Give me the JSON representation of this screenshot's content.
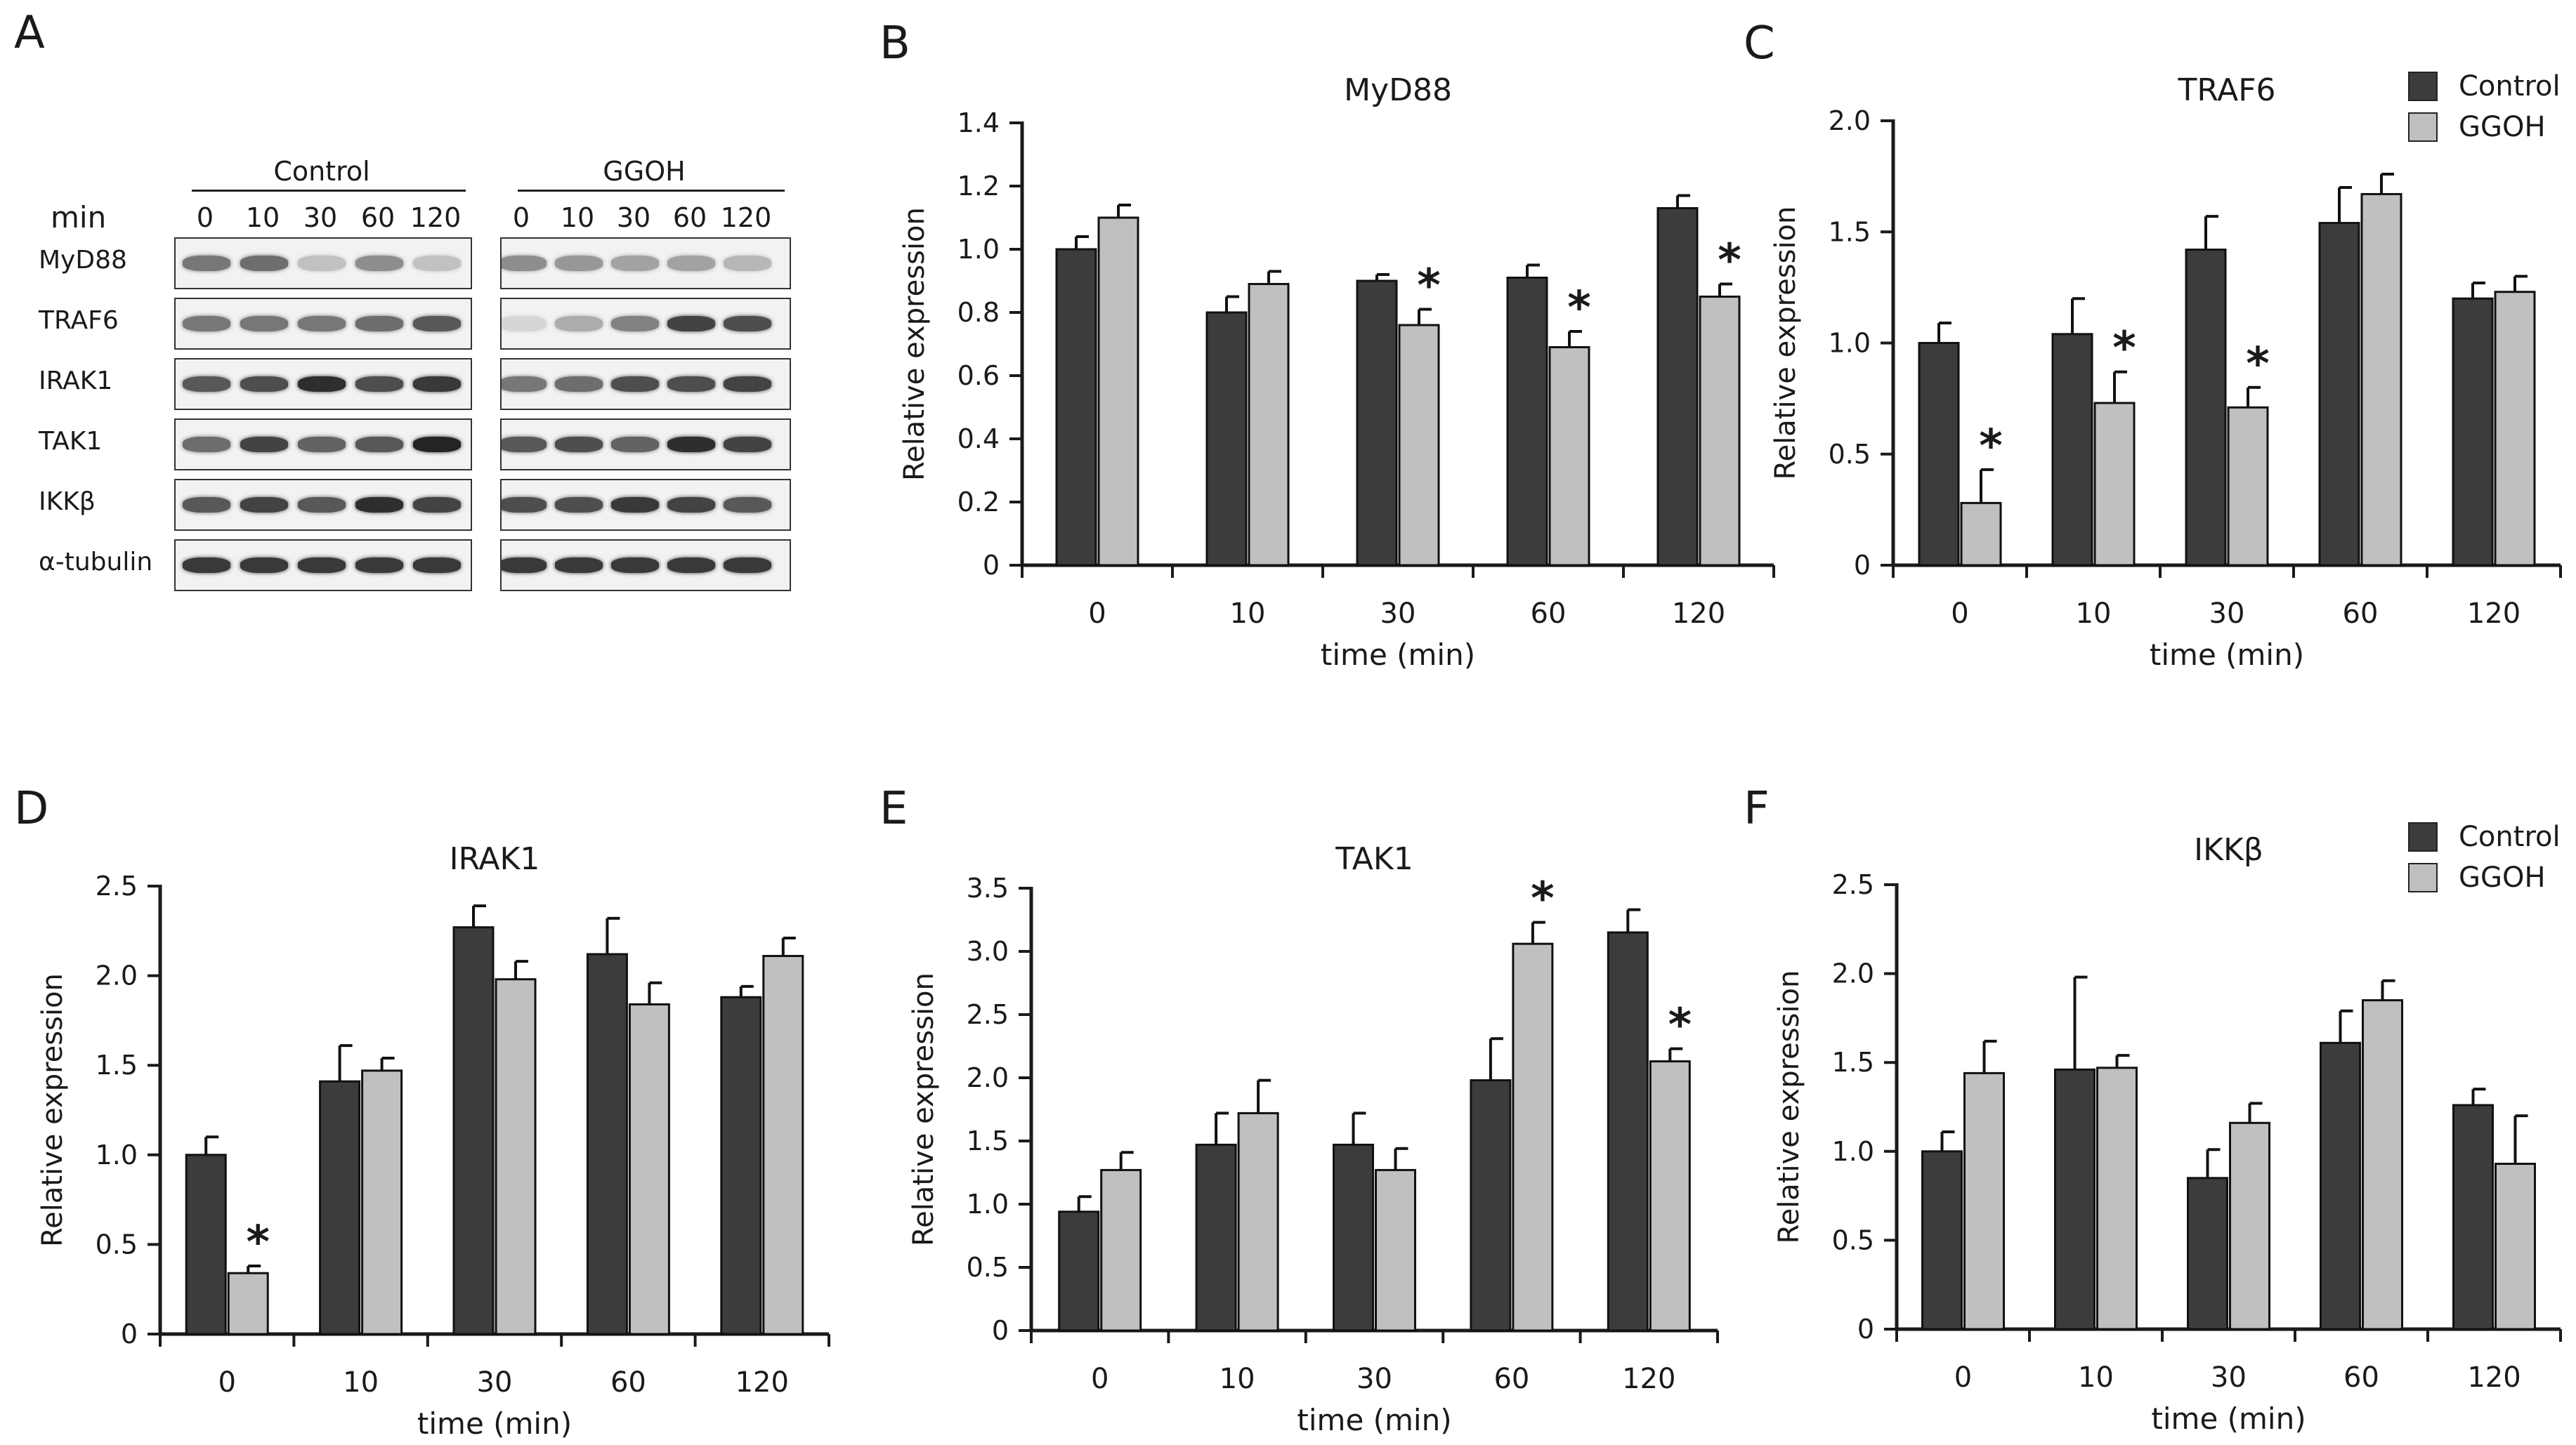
{
  "figure": {
    "panel_labels": [
      "A",
      "B",
      "C",
      "D",
      "E",
      "F"
    ],
    "colors": {
      "control": "#3c3c3c",
      "ggoh": "#c0c0c0",
      "axis": "#1a1a1a"
    },
    "legend": {
      "items": [
        "Control",
        "GGOH"
      ]
    }
  },
  "blot": {
    "group_control": "Control",
    "group_ggoh": "GGOH",
    "min_label": "min",
    "time_labels": [
      "0",
      "10",
      "30",
      "60",
      "120"
    ],
    "rows": [
      {
        "label": "MyD88",
        "control": [
          0.55,
          0.6,
          0.2,
          0.45,
          0.2
        ],
        "ggoh": [
          0.45,
          0.4,
          0.35,
          0.35,
          0.25
        ]
      },
      {
        "label": "TRAF6",
        "control": [
          0.55,
          0.55,
          0.55,
          0.6,
          0.7
        ],
        "ggoh": [
          0.1,
          0.3,
          0.5,
          0.8,
          0.75
        ]
      },
      {
        "label": "IRAK1",
        "control": [
          0.7,
          0.75,
          0.9,
          0.75,
          0.85
        ],
        "ggoh": [
          0.55,
          0.6,
          0.75,
          0.75,
          0.8
        ]
      },
      {
        "label": "TAK1",
        "control": [
          0.6,
          0.8,
          0.65,
          0.7,
          0.95
        ],
        "ggoh": [
          0.7,
          0.75,
          0.65,
          0.9,
          0.8
        ]
      },
      {
        "label": "IKKβ",
        "control": [
          0.7,
          0.8,
          0.7,
          0.9,
          0.8
        ],
        "ggoh": [
          0.75,
          0.75,
          0.85,
          0.8,
          0.7
        ]
      },
      {
        "label": "α-tubulin",
        "control": [
          0.85,
          0.85,
          0.85,
          0.85,
          0.85
        ],
        "ggoh": [
          0.85,
          0.85,
          0.85,
          0.85,
          0.85
        ]
      }
    ]
  },
  "chart_data": [
    {
      "panel": "B",
      "type": "bar",
      "title": "MyD88",
      "xlabel": "time (min)",
      "ylabel": "Relative expression",
      "categories": [
        "0",
        "10",
        "30",
        "60",
        "120"
      ],
      "ylim": [
        0,
        1.4
      ],
      "yticks": [
        "0",
        "0.2",
        "0.4",
        "0.6",
        "0.8",
        "1.0",
        "1.2",
        "1.4"
      ],
      "series": [
        {
          "name": "Control",
          "values": [
            1.0,
            0.8,
            0.9,
            0.91,
            1.13
          ],
          "errors": [
            0.04,
            0.05,
            0.02,
            0.04,
            0.04
          ]
        },
        {
          "name": "GGOH",
          "values": [
            1.1,
            0.89,
            0.76,
            0.69,
            0.85
          ],
          "errors": [
            0.04,
            0.04,
            0.05,
            0.05,
            0.04
          ]
        }
      ],
      "annotations": [
        {
          "category": "30",
          "series": "GGOH",
          "text": "*"
        },
        {
          "category": "60",
          "series": "GGOH",
          "text": "*"
        },
        {
          "category": "120",
          "series": "GGOH",
          "text": "*"
        }
      ]
    },
    {
      "panel": "C",
      "type": "bar",
      "title": "TRAF6",
      "xlabel": "time (min)",
      "ylabel": "Relative expression",
      "categories": [
        "0",
        "10",
        "30",
        "60",
        "120"
      ],
      "ylim": [
        0,
        2.0
      ],
      "yticks": [
        "0",
        "0.5",
        "1.0",
        "1.5",
        "2.0"
      ],
      "legend_position": "top-right",
      "series": [
        {
          "name": "Control",
          "values": [
            1.0,
            1.04,
            1.42,
            1.54,
            1.2
          ],
          "errors": [
            0.09,
            0.16,
            0.15,
            0.16,
            0.07
          ]
        },
        {
          "name": "GGOH",
          "values": [
            0.28,
            0.73,
            0.71,
            1.67,
            1.23
          ],
          "errors": [
            0.15,
            0.14,
            0.09,
            0.09,
            0.07
          ]
        }
      ],
      "annotations": [
        {
          "category": "0",
          "series": "GGOH",
          "text": "*"
        },
        {
          "category": "10",
          "series": "GGOH",
          "text": "*"
        },
        {
          "category": "30",
          "series": "GGOH",
          "text": "*"
        }
      ]
    },
    {
      "panel": "D",
      "type": "bar",
      "title": "IRAK1",
      "xlabel": "time (min)",
      "ylabel": "Relative expression",
      "categories": [
        "0",
        "10",
        "30",
        "60",
        "120"
      ],
      "ylim": [
        0,
        2.5
      ],
      "yticks": [
        "0",
        "0.5",
        "1.0",
        "1.5",
        "2.0",
        "2.5"
      ],
      "series": [
        {
          "name": "Control",
          "values": [
            1.0,
            1.41,
            2.27,
            2.12,
            1.88
          ],
          "errors": [
            0.1,
            0.2,
            0.12,
            0.2,
            0.06
          ]
        },
        {
          "name": "GGOH",
          "values": [
            0.34,
            1.47,
            1.98,
            1.84,
            2.11
          ],
          "errors": [
            0.04,
            0.07,
            0.1,
            0.12,
            0.1
          ]
        }
      ],
      "annotations": [
        {
          "category": "0",
          "series": "GGOH",
          "text": "*"
        }
      ]
    },
    {
      "panel": "E",
      "type": "bar",
      "title": "TAK1",
      "xlabel": "time (min)",
      "ylabel": "Relative expression",
      "categories": [
        "0",
        "10",
        "30",
        "60",
        "120"
      ],
      "ylim": [
        0,
        3.5
      ],
      "yticks": [
        "0",
        "0.5",
        "1.0",
        "1.5",
        "2.0",
        "2.5",
        "3.0",
        "3.5"
      ],
      "series": [
        {
          "name": "Control",
          "values": [
            0.94,
            1.47,
            1.47,
            1.98,
            3.15
          ],
          "errors": [
            0.12,
            0.25,
            0.25,
            0.33,
            0.18
          ]
        },
        {
          "name": "GGOH",
          "values": [
            1.27,
            1.72,
            1.27,
            3.06,
            2.13
          ],
          "errors": [
            0.14,
            0.26,
            0.17,
            0.17,
            0.1
          ]
        }
      ],
      "annotations": [
        {
          "category": "60",
          "series": "GGOH",
          "text": "*"
        },
        {
          "category": "120",
          "series": "GGOH",
          "text": "*"
        }
      ]
    },
    {
      "panel": "F",
      "type": "bar",
      "title": "IKKβ",
      "xlabel": "time (min)",
      "ylabel": "Relative expression",
      "categories": [
        "0",
        "10",
        "30",
        "60",
        "120"
      ],
      "ylim": [
        0,
        2.5
      ],
      "yticks": [
        "0",
        "0.5",
        "1.0",
        "1.5",
        "2.0",
        "2.5"
      ],
      "legend_position": "top-right",
      "series": [
        {
          "name": "Control",
          "values": [
            1.0,
            1.46,
            0.85,
            1.61,
            1.26
          ],
          "errors": [
            0.11,
            0.52,
            0.16,
            0.18,
            0.09
          ]
        },
        {
          "name": "GGOH",
          "values": [
            1.44,
            1.47,
            1.16,
            1.85,
            0.93
          ],
          "errors": [
            0.18,
            0.07,
            0.11,
            0.11,
            0.27
          ]
        }
      ],
      "annotations": []
    }
  ]
}
